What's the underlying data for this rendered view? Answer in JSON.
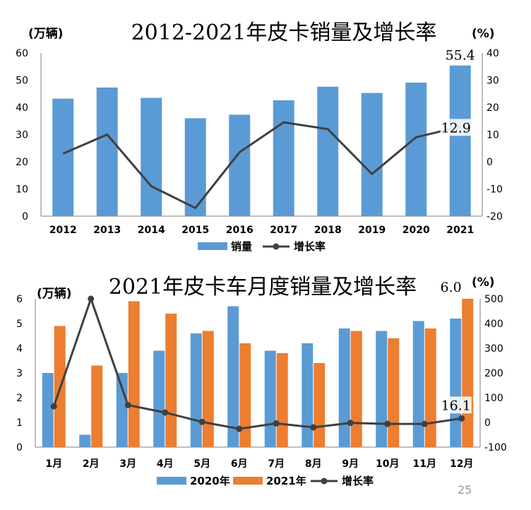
{
  "colors": {
    "blue": "#5b9bd5",
    "orange": "#ed7d31",
    "line": "#404040",
    "axis": "#7f7f7f"
  },
  "page_number": "25",
  "chart_data": [
    {
      "type": "bar",
      "title": "2012-2021年皮卡销量及增长率",
      "y_unit_left": "(万辆)",
      "y_unit_right": "(%)",
      "categories": [
        "2012",
        "2013",
        "2014",
        "2015",
        "2016",
        "2017",
        "2018",
        "2019",
        "2020",
        "2021"
      ],
      "series": [
        {
          "name": "销量",
          "type": "bar",
          "axis": "left",
          "color": "#5b9bd5",
          "values": [
            43.2,
            47.3,
            43.5,
            36.0,
            37.3,
            42.6,
            47.6,
            45.3,
            49.1,
            55.4
          ]
        },
        {
          "name": "增长率",
          "type": "line",
          "axis": "right",
          "color": "#404040",
          "values": [
            3,
            10,
            -9,
            -17,
            3.5,
            14.5,
            12,
            -4.5,
            9,
            12.9
          ]
        }
      ],
      "ylim_left": [
        0,
        60
      ],
      "yticks_left": [
        0,
        10,
        20,
        30,
        40,
        50,
        60
      ],
      "ylim_right": [
        -20,
        40
      ],
      "yticks_right": [
        -20,
        -10,
        0,
        10,
        20,
        30,
        40
      ],
      "data_labels": [
        {
          "series": 0,
          "index": 9,
          "text": "55.4"
        },
        {
          "series": 1,
          "index": 9,
          "text": "12.9"
        }
      ],
      "legend": "bottom",
      "grid": false
    },
    {
      "type": "bar",
      "title": "2021年皮卡车月度销量及增长率",
      "y_unit_left": "(万辆)",
      "y_unit_right": "(%)",
      "categories": [
        "1月",
        "2月",
        "3月",
        "4月",
        "5月",
        "6月",
        "7月",
        "8月",
        "9月",
        "10月",
        "11月",
        "12月"
      ],
      "series": [
        {
          "name": "2020年",
          "type": "bar",
          "axis": "left",
          "color": "#5b9bd5",
          "values": [
            3.0,
            0.5,
            3.0,
            3.9,
            4.6,
            5.7,
            3.9,
            4.2,
            4.8,
            4.7,
            5.1,
            5.2
          ]
        },
        {
          "name": "2021年",
          "type": "bar",
          "axis": "left",
          "color": "#ed7d31",
          "values": [
            4.9,
            3.3,
            5.9,
            5.4,
            4.7,
            4.2,
            3.8,
            3.4,
            4.7,
            4.4,
            4.8,
            6.0
          ]
        },
        {
          "name": "增长率",
          "type": "line",
          "axis": "right",
          "color": "#404040",
          "values": [
            65,
            500,
            70,
            40,
            2,
            -26,
            -4,
            -20,
            -2,
            -6,
            -6,
            16.1
          ]
        }
      ],
      "ylim_left": [
        0,
        6
      ],
      "yticks_left": [
        0,
        1,
        2,
        3,
        4,
        5,
        6
      ],
      "ylim_right": [
        -100,
        500
      ],
      "yticks_right": [
        -100,
        0,
        100,
        200,
        300,
        400,
        500
      ],
      "data_labels": [
        {
          "series": 1,
          "index": 11,
          "text": "6.0"
        },
        {
          "series": 2,
          "index": 11,
          "text": "16.1"
        }
      ],
      "legend": "bottom",
      "grid": false
    }
  ]
}
